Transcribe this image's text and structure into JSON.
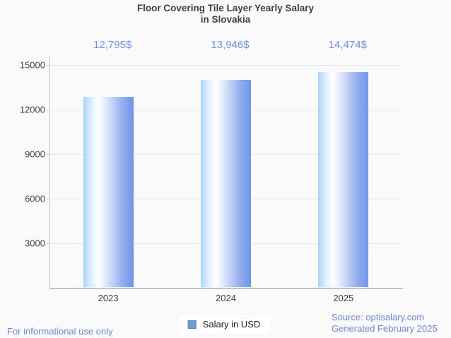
{
  "title": {
    "line1": "Floor Covering Tile Layer Yearly Salary",
    "line2": "in Slovakia"
  },
  "chart_data": {
    "type": "bar",
    "title": "Floor Covering Tile Layer Yearly Salary in Slovakia",
    "categories": [
      "2023",
      "2024",
      "2025"
    ],
    "series": [
      {
        "name": "Salary in USD",
        "values": [
          12795,
          13946,
          14474
        ],
        "value_labels": [
          "12,795$",
          "13,946$",
          "14,474$"
        ]
      }
    ],
    "xlabel": "",
    "ylabel": "",
    "ylim": [
      0,
      15000
    ],
    "yticks": [
      15000,
      12000,
      9000,
      6000,
      3000
    ],
    "ytick_labels": [
      "15000",
      "12000",
      "9000",
      "6000",
      "3000"
    ],
    "grid": true,
    "legend_position": "bottom",
    "bar_gradient": [
      "#a7d3fb",
      "#ffffff",
      "#6e96e9"
    ],
    "value_label_color": "#6d93e2",
    "background_color": "#fafafa"
  },
  "legend": {
    "label": "Salary in USD",
    "marker_color": "#63a0e8"
  },
  "footer": {
    "left": "For informational use only",
    "source": "Source: optisalary.com",
    "generated": "Generated February 2025"
  }
}
